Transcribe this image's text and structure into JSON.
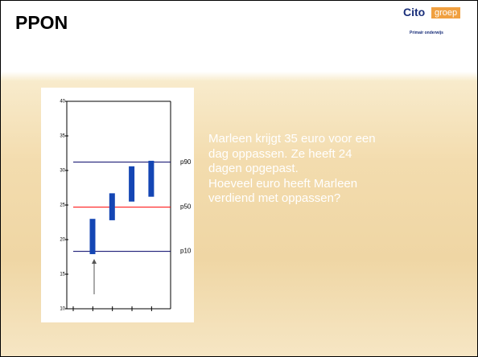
{
  "header": {
    "title": "PPON"
  },
  "logo": {
    "name": "Cito",
    "suffix": "groep",
    "tagline": "Primair onderwijs"
  },
  "text": {
    "lines": [
      "Marleen krijgt 35 euro voor een",
      "dag oppassen. Ze heeft 24",
      "dagen opgepast.",
      "Hoeveel euro heeft Marleen",
      "verdiend met oppassen?"
    ]
  },
  "chart_data": {
    "type": "range_bar",
    "categories": [
      null,
      null,
      null,
      null
    ],
    "lows": [
      17.9,
      22.8,
      25.5,
      26.2
    ],
    "highs": [
      23,
      26.7,
      30.6,
      31.4
    ],
    "color": "#1446b4",
    "ylim": [
      10,
      40
    ],
    "yticks": [
      10,
      15,
      20,
      25,
      30,
      35,
      40
    ],
    "reference_lines": [
      {
        "label": "p90",
        "value": 31.2,
        "color": "#000066"
      },
      {
        "label": "p50",
        "value": 24.7,
        "color": "#ff0000"
      },
      {
        "label": "p10",
        "value": 18.3,
        "color": "#000066"
      }
    ]
  }
}
